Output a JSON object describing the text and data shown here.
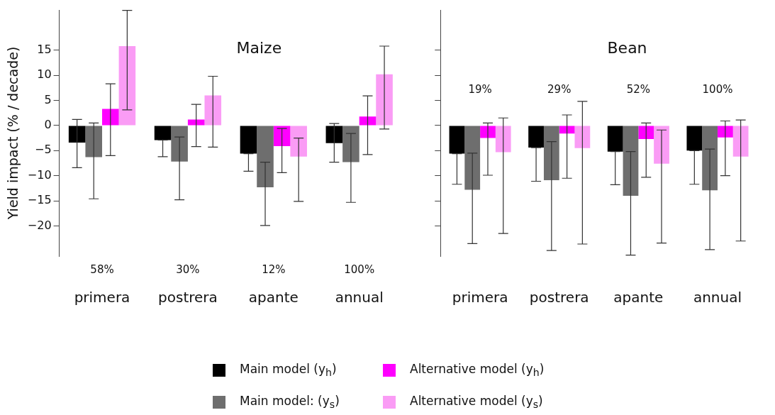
{
  "chart_data": [
    {
      "type": "bar",
      "title": "Maize",
      "ylabel": "Yield impact (% / decade)",
      "categories": [
        "primera",
        "postrera",
        "apante",
        "annual"
      ],
      "ylim": [
        -26,
        23
      ],
      "yticks": [
        -20,
        -15,
        -10,
        -5,
        0,
        5,
        10,
        15
      ],
      "grid": false,
      "legend": "bottom",
      "series": [
        {
          "name": "Main model (y$_{h}$)",
          "color": "#000000",
          "values": [
            -3.4,
            -2.9,
            -5.6,
            -3.5
          ],
          "errors": [
            [
              -8.4,
              1.2
            ],
            [
              -6.2,
              -2.9
            ],
            [
              -9.1,
              -5.6
            ],
            [
              -7.3,
              0.4
            ]
          ]
        },
        {
          "name": "Main model: (y$_{s}$)",
          "color": "#6e6e6e",
          "values": [
            -6.3,
            -7.2,
            -12.3,
            -7.3
          ],
          "errors": [
            [
              -14.6,
              0.5
            ],
            [
              -14.8,
              -2.3
            ],
            [
              -19.9,
              -7.3
            ],
            [
              -15.3,
              -1.6
            ]
          ]
        },
        {
          "name": "Alternative model (y$_{h}$)",
          "color": "#ff00ff",
          "values": [
            3.3,
            1.2,
            -4.1,
            1.8
          ],
          "errors": [
            [
              -6.0,
              8.3
            ],
            [
              -4.2,
              4.2
            ],
            [
              -9.4,
              -0.6
            ],
            [
              -5.8,
              5.9
            ]
          ]
        },
        {
          "name": "Alternative model (y$_{s}$)",
          "color": "#fa9cf5",
          "values": [
            15.8,
            6.0,
            -6.2,
            10.2
          ],
          "errors": [
            [
              3.1,
              22.9
            ],
            [
              -4.3,
              9.8
            ],
            [
              -15.1,
              -2.5
            ],
            [
              -0.7,
              15.8
            ]
          ]
        }
      ],
      "annotations": [
        "58%",
        "30%",
        "12%",
        "100%"
      ]
    },
    {
      "type": "bar",
      "title": "Bean",
      "categories": [
        "primera",
        "postrera",
        "apante",
        "annual"
      ],
      "ylim": [
        -26,
        23
      ],
      "yticks": [
        -20,
        -15,
        -10,
        -5,
        0,
        5,
        10,
        15
      ],
      "tick_labels": "x",
      "grid": false,
      "series": [
        {
          "color": "#000000",
          "values": [
            -5.6,
            -4.4,
            -5.2,
            -5.0
          ],
          "errors": [
            [
              -11.7,
              -5.6
            ],
            [
              -11.1,
              -4.4
            ],
            [
              -11.8,
              -5.2
            ],
            [
              -11.7,
              -5.0
            ]
          ]
        },
        {
          "color": "#6e6e6e",
          "values": [
            -12.8,
            -10.9,
            -14.0,
            -12.9
          ],
          "errors": [
            [
              -23.5,
              -5.5
            ],
            [
              -24.9,
              -3.2
            ],
            [
              -25.8,
              -5.2
            ],
            [
              -24.7,
              -4.7
            ]
          ]
        },
        {
          "color": "#ff00ff",
          "values": [
            -2.5,
            -1.6,
            -2.7,
            -2.4
          ],
          "errors": [
            [
              -9.9,
              0.5
            ],
            [
              -10.5,
              2.1
            ],
            [
              -10.3,
              0.5
            ],
            [
              -10.0,
              0.9
            ]
          ]
        },
        {
          "color": "#fa9cf5",
          "values": [
            -5.3,
            -4.5,
            -7.6,
            -6.2
          ],
          "errors": [
            [
              -21.5,
              1.5
            ],
            [
              -23.6,
              4.8
            ],
            [
              -23.4,
              -0.9
            ],
            [
              -23.0,
              1.1
            ]
          ]
        }
      ],
      "annotations": [
        "19%",
        "29%",
        "52%",
        "100%"
      ]
    }
  ]
}
